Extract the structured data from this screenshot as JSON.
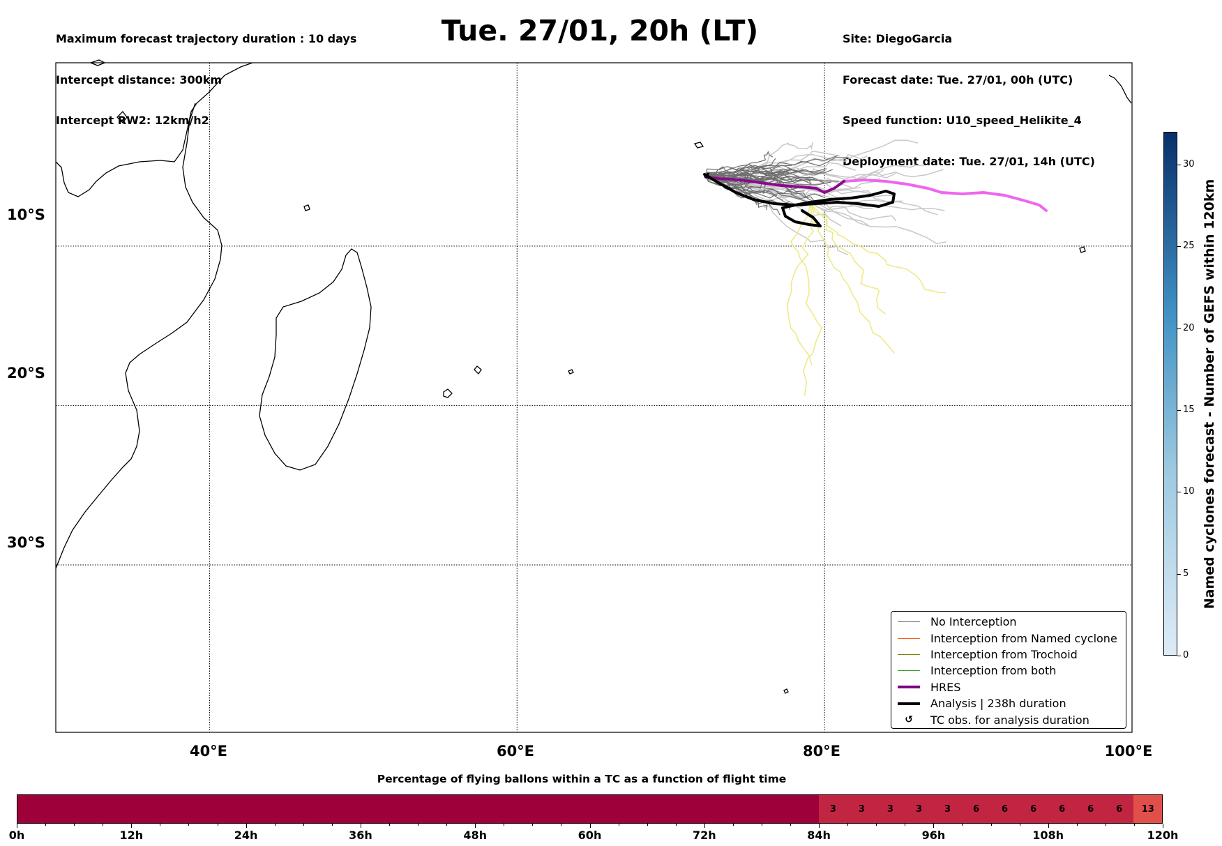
{
  "header": {
    "left_lines": [
      "Maximum forecast trajectory duration : 10 days",
      "Intercept distance: 300km",
      "Intercept RW2: 12km/h2"
    ],
    "title": "Tue. 27/01, 20h (LT)",
    "right_lines": [
      "Site: DiegoGarcia",
      "Forecast date: Tue. 27/01, 00h (UTC)",
      "Speed function: U10_speed_Helikite_4",
      "Deployment date: Tue. 27/01, 14h (UTC)"
    ]
  },
  "map": {
    "lon_range": [
      30,
      100
    ],
    "lat_range": [
      -40.5,
      1.5
    ],
    "grid": true,
    "lat_labels": [
      "10°S",
      "20°S",
      "30°S"
    ],
    "lat_values": [
      -10,
      -20,
      -30
    ],
    "lon_labels": [
      "40°E",
      "60°E",
      "80°E",
      "100°E"
    ],
    "lon_values": [
      40,
      60,
      80,
      100
    ],
    "colors": {
      "no_interception": "#6e6e6e",
      "light_trajectory": "#c8c8c8",
      "yellow_trajectory": "#eeea88",
      "hres": "#8b0a8b",
      "hres_forecast": "#ee66ee",
      "analysis": "#000000",
      "coast": "#000000"
    }
  },
  "legend": {
    "items": [
      {
        "label": "No Interception",
        "color": "#6e6e6e",
        "width": 1.2
      },
      {
        "label": "Interception from Named cyclone",
        "color": "#ff5a1f",
        "width": 1.2
      },
      {
        "label": "Interception from Trochoid",
        "color": "#808000",
        "width": 1.2
      },
      {
        "label": "Interception from both",
        "color": "#2ca02c",
        "width": 1.2
      },
      {
        "label": "HRES",
        "color": "#800080",
        "width": 4
      },
      {
        "label": "Analysis | 238h duration",
        "color": "#000000",
        "width": 4
      },
      {
        "label": "TC obs. for analysis duration",
        "symbol": "↺"
      }
    ]
  },
  "colorbar": {
    "label": "Named cyclones forecast - Number of GEFS within 120km",
    "min": 0,
    "max": 32,
    "ticks": [
      "0",
      "5",
      "10",
      "15",
      "20",
      "25",
      "30"
    ],
    "tick_values": [
      0,
      5,
      10,
      15,
      20,
      25,
      30
    ],
    "color_low": "#deebf7",
    "color_high": "#08306b"
  },
  "time_bar": {
    "title": "Percentage of flying ballons within a TC as a function of flight time",
    "labels": [
      "0h",
      "12h",
      "24h",
      "36h",
      "48h",
      "60h",
      "72h",
      "84h",
      "96h",
      "108h",
      "120h"
    ],
    "cells": [
      "",
      "",
      "",
      "",
      "",
      "",
      "",
      "",
      "",
      "",
      "",
      "",
      "",
      "",
      "",
      "",
      "",
      "",
      "",
      "",
      "",
      "",
      "",
      "",
      "",
      "",
      "",
      "",
      "3",
      "3",
      "3",
      "3",
      "3",
      "6",
      "6",
      "6",
      "6",
      "6",
      "6",
      "13"
    ],
    "color_zero": "#9e003a",
    "color_mid": "#c12542",
    "color_high": "#e14f4a"
  }
}
